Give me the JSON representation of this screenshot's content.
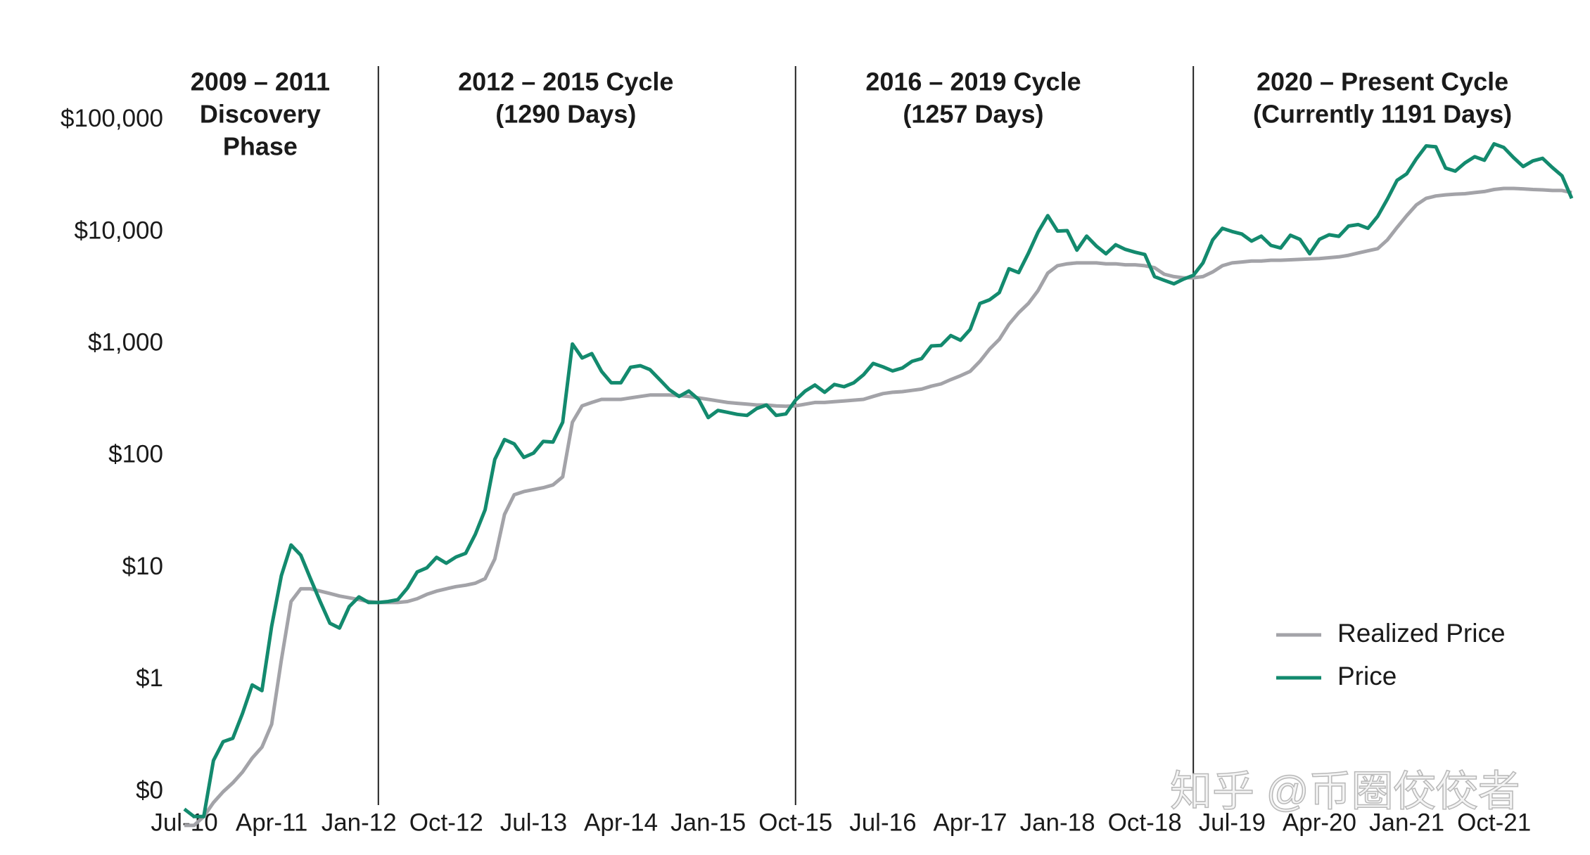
{
  "chart_data": {
    "type": "line",
    "log_scale": true,
    "x": [
      "2010-07",
      "2010-08",
      "2010-09",
      "2010-10",
      "2010-11",
      "2010-12",
      "2011-01",
      "2011-02",
      "2011-03",
      "2011-04",
      "2011-05",
      "2011-06",
      "2011-07",
      "2011-08",
      "2011-09",
      "2011-10",
      "2011-11",
      "2011-12",
      "2012-01",
      "2012-02",
      "2012-03",
      "2012-04",
      "2012-05",
      "2012-06",
      "2012-07",
      "2012-08",
      "2012-09",
      "2012-10",
      "2012-11",
      "2012-12",
      "2013-01",
      "2013-02",
      "2013-03",
      "2013-04",
      "2013-05",
      "2013-06",
      "2013-07",
      "2013-08",
      "2013-09",
      "2013-10",
      "2013-11",
      "2013-12",
      "2014-01",
      "2014-02",
      "2014-03",
      "2014-04",
      "2014-05",
      "2014-06",
      "2014-07",
      "2014-08",
      "2014-09",
      "2014-10",
      "2014-11",
      "2014-12",
      "2015-01",
      "2015-02",
      "2015-03",
      "2015-04",
      "2015-05",
      "2015-06",
      "2015-07",
      "2015-08",
      "2015-09",
      "2015-10",
      "2015-11",
      "2015-12",
      "2016-01",
      "2016-02",
      "2016-03",
      "2016-04",
      "2016-05",
      "2016-06",
      "2016-07",
      "2016-08",
      "2016-09",
      "2016-10",
      "2016-11",
      "2016-12",
      "2017-01",
      "2017-02",
      "2017-03",
      "2017-04",
      "2017-05",
      "2017-06",
      "2017-07",
      "2017-08",
      "2017-09",
      "2017-10",
      "2017-11",
      "2017-12",
      "2018-01",
      "2018-02",
      "2018-03",
      "2018-04",
      "2018-05",
      "2018-06",
      "2018-07",
      "2018-08",
      "2018-09",
      "2018-10",
      "2018-11",
      "2018-12",
      "2019-01",
      "2019-02",
      "2019-03",
      "2019-04",
      "2019-05",
      "2019-06",
      "2019-07",
      "2019-08",
      "2019-09",
      "2019-10",
      "2019-11",
      "2019-12",
      "2020-01",
      "2020-02",
      "2020-03",
      "2020-04",
      "2020-05",
      "2020-06",
      "2020-07",
      "2020-08",
      "2020-09",
      "2020-10",
      "2020-11",
      "2020-12",
      "2021-01",
      "2021-02",
      "2021-03",
      "2021-04",
      "2021-05",
      "2021-06",
      "2021-07",
      "2021-08",
      "2021-09",
      "2021-10",
      "2021-11",
      "2021-12",
      "2022-01",
      "2022-02",
      "2022-03",
      "2022-04",
      "2022-05",
      "2022-06"
    ],
    "series": [
      {
        "name": "Realized Price",
        "color": "#a3a3a8",
        "values": [
          0.05,
          0.05,
          0.06,
          0.08,
          0.1,
          0.12,
          0.15,
          0.2,
          0.25,
          0.4,
          1.5,
          5,
          6.5,
          6.5,
          6.2,
          5.9,
          5.6,
          5.4,
          5.2,
          5.0,
          4.9,
          4.9,
          4.9,
          5.0,
          5.3,
          5.8,
          6.2,
          6.5,
          6.8,
          7.0,
          7.3,
          8.0,
          12,
          30,
          45,
          48,
          50,
          52,
          55,
          65,
          200,
          280,
          300,
          320,
          320,
          320,
          330,
          340,
          350,
          350,
          350,
          345,
          340,
          330,
          320,
          310,
          300,
          295,
          290,
          285,
          285,
          280,
          278,
          280,
          290,
          300,
          300,
          305,
          310,
          315,
          320,
          340,
          360,
          370,
          375,
          385,
          395,
          420,
          440,
          480,
          520,
          570,
          700,
          900,
          1100,
          1500,
          1900,
          2300,
          3000,
          4300,
          5000,
          5200,
          5300,
          5300,
          5300,
          5200,
          5200,
          5100,
          5100,
          5000,
          4800,
          4200,
          4000,
          3900,
          3900,
          4000,
          4400,
          5000,
          5300,
          5400,
          5500,
          5500,
          5600,
          5600,
          5650,
          5700,
          5750,
          5800,
          5900,
          6000,
          6200,
          6500,
          6800,
          7100,
          8500,
          11000,
          14000,
          17500,
          20000,
          21000,
          21500,
          21800,
          22000,
          22500,
          23000,
          24000,
          24500,
          24500,
          24300,
          24000,
          23800,
          23500,
          23500,
          22500
        ]
      },
      {
        "name": "Price",
        "color": "#138a6e",
        "values": [
          0.07,
          0.06,
          0.06,
          0.19,
          0.28,
          0.3,
          0.5,
          0.9,
          0.8,
          3.0,
          8.5,
          16,
          13,
          8,
          5,
          3.2,
          2.9,
          4.5,
          5.5,
          4.9,
          4.9,
          5.0,
          5.2,
          6.6,
          9.2,
          10,
          12.4,
          11,
          12.5,
          13.5,
          20,
          33,
          93,
          140,
          128,
          97,
          106,
          135,
          133,
          200,
          1000,
          750,
          820,
          570,
          450,
          450,
          620,
          640,
          590,
          480,
          390,
          340,
          380,
          320,
          220,
          255,
          245,
          235,
          230,
          265,
          285,
          230,
          237,
          315,
          380,
          430,
          370,
          435,
          415,
          450,
          530,
          670,
          625,
          575,
          610,
          700,
          740,
          960,
          970,
          1190,
          1080,
          1350,
          2300,
          2480,
          2880,
          4700,
          4340,
          6450,
          10000,
          14000,
          10200,
          10300,
          6900,
          9200,
          7500,
          6400,
          7700,
          7000,
          6600,
          6300,
          4000,
          3700,
          3450,
          3800,
          4100,
          5300,
          8500,
          10800,
          10100,
          9600,
          8300,
          9200,
          7600,
          7200,
          9350,
          8600,
          6400,
          8600,
          9450,
          9150,
          11300,
          11650,
          10800,
          13800,
          19700,
          29000,
          33100,
          45200,
          58800,
          57700,
          37300,
          35000,
          41500,
          47100,
          43800,
          61300,
          57000,
          46300,
          38500,
          43200,
          45500,
          37700,
          31800,
          20000
        ]
      }
    ],
    "xlim": [
      "2010-07",
      "2022-06"
    ],
    "xticks": [
      {
        "value": "2010-07",
        "label": "Jul-10"
      },
      {
        "value": "2011-04",
        "label": "Apr-11"
      },
      {
        "value": "2012-01",
        "label": "Jan-12"
      },
      {
        "value": "2012-10",
        "label": "Oct-12"
      },
      {
        "value": "2013-07",
        "label": "Jul-13"
      },
      {
        "value": "2014-04",
        "label": "Apr-14"
      },
      {
        "value": "2015-01",
        "label": "Jan-15"
      },
      {
        "value": "2015-10",
        "label": "Oct-15"
      },
      {
        "value": "2016-07",
        "label": "Jul-16"
      },
      {
        "value": "2017-04",
        "label": "Apr-17"
      },
      {
        "value": "2018-01",
        "label": "Jan-18"
      },
      {
        "value": "2018-10",
        "label": "Oct-18"
      },
      {
        "value": "2019-07",
        "label": "Jul-19"
      },
      {
        "value": "2020-04",
        "label": "Apr-20"
      },
      {
        "value": "2021-01",
        "label": "Jan-21"
      },
      {
        "value": "2021-10",
        "label": "Oct-21"
      }
    ],
    "ylim": [
      0.1,
      100000
    ],
    "yticks": [
      {
        "value": 0.1,
        "label": "$0"
      },
      {
        "value": 1,
        "label": "$1"
      },
      {
        "value": 10,
        "label": "$10"
      },
      {
        "value": 100,
        "label": "$100"
      },
      {
        "value": 1000,
        "label": "$1,000"
      },
      {
        "value": 10000,
        "label": "$10,000"
      },
      {
        "value": 100000,
        "label": "$100,000"
      }
    ],
    "cycles": [
      {
        "lines": [
          "2009 – 2011",
          "Discovery",
          "Phase"
        ]
      },
      {
        "lines": [
          "2012 – 2015 Cycle",
          "(1290 Days)"
        ],
        "start": "2012-03"
      },
      {
        "lines": [
          "2016 – 2019 Cycle",
          "(1257 Days)"
        ],
        "start": "2015-10"
      },
      {
        "lines": [
          "2020 – Present Cycle",
          "(Currently 1191 Days)"
        ],
        "start": "2019-03"
      }
    ],
    "legend": "lower right",
    "watermark": "知乎 @币圈佼佼者"
  }
}
